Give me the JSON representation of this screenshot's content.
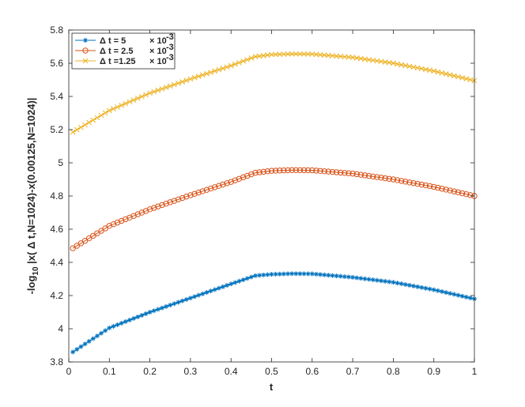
{
  "chart_data": {
    "type": "line",
    "xlabel": "t",
    "ylabel": {
      "prefix": "-log",
      "subscript": "10",
      "rest": " |x( Δ t,N=1024)-x(0.00125,N=1024)|"
    },
    "xlim": [
      0,
      1
    ],
    "ylim": [
      3.8,
      5.8
    ],
    "xticks": [
      "0",
      "0.1",
      "0.2",
      "0.3",
      "0.4",
      "0.5",
      "0.6",
      "0.7",
      "0.8",
      "0.9",
      "1"
    ],
    "yticks": [
      "3.8",
      "4",
      "4.2",
      "4.4",
      "4.6",
      "4.8",
      "5",
      "5.2",
      "5.4",
      "5.6",
      "5.8"
    ],
    "grid": false,
    "legend_position": "top-left",
    "series": [
      {
        "name": "Δ t = 5   × 10 -3",
        "legend": {
          "main": "Δ t = 5",
          "times": "× 10",
          "exp": "-3"
        },
        "color": "#0072BD",
        "marker": "asterisk",
        "x": [
          0.01,
          0.1,
          0.2,
          0.3,
          0.4,
          0.46,
          0.5,
          0.55,
          0.6,
          0.7,
          0.8,
          0.9,
          1.0
        ],
        "y": [
          3.86,
          4.005,
          4.1,
          4.185,
          4.27,
          4.32,
          4.328,
          4.332,
          4.331,
          4.31,
          4.28,
          4.235,
          4.18
        ]
      },
      {
        "name": "Δ t = 2.5   × 10 -3",
        "legend": {
          "main": "Δ t = 2.5",
          "times": "× 10",
          "exp": "-3"
        },
        "color": "#D95319",
        "marker": "circle",
        "x": [
          0.01,
          0.1,
          0.2,
          0.3,
          0.4,
          0.46,
          0.5,
          0.55,
          0.6,
          0.7,
          0.8,
          0.9,
          1.0
        ],
        "y": [
          4.485,
          4.62,
          4.72,
          4.805,
          4.885,
          4.94,
          4.952,
          4.956,
          4.955,
          4.935,
          4.9,
          4.855,
          4.8
        ]
      },
      {
        "name": "Δ t =1.25   × 10 -3",
        "legend": {
          "main": "Δ t =1.25",
          "times": "× 10",
          "exp": "-3"
        },
        "color": "#EDB120",
        "marker": "x",
        "x": [
          0.01,
          0.1,
          0.2,
          0.3,
          0.4,
          0.46,
          0.5,
          0.55,
          0.6,
          0.7,
          0.8,
          0.9,
          1.0
        ],
        "y": [
          5.185,
          5.315,
          5.42,
          5.505,
          5.585,
          5.64,
          5.652,
          5.656,
          5.655,
          5.635,
          5.6,
          5.553,
          5.495
        ]
      }
    ]
  }
}
